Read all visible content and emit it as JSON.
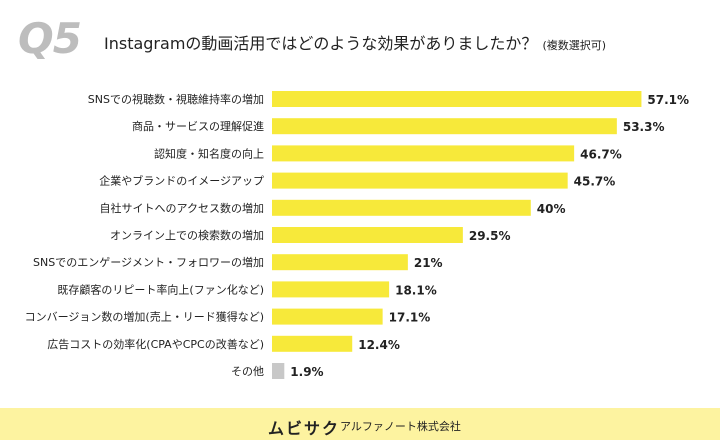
{
  "question_number": "Q5",
  "title": "Instagramの動画活用ではどのような効果がありましたか？",
  "title_note": "(複数選択可)",
  "footer": {
    "logo": "ムビサク",
    "company": "アルファノート株式会社"
  },
  "colors": {
    "bar": "#f7e93a",
    "bar_other": "#c8c8c8",
    "footer_bg": "#fdf3a0"
  },
  "chart_data": {
    "type": "bar",
    "orientation": "horizontal",
    "categories": [
      "SNSでの視聴数・視聴維持率の増加",
      "商品・サービスの理解促進",
      "認知度・知名度の向上",
      "企業やブランドのイメージアップ",
      "自社サイトへのアクセス数の増加",
      "オンライン上での検索数の増加",
      "SNSでのエンゲージメント・フォロワーの増加",
      "既存顧客のリピート率向上(ファン化など)",
      "コンバージョン数の増加(売上・リード獲得など)",
      "広告コストの効率化(CPAやCPCの改善など)",
      "その他"
    ],
    "values": [
      57.1,
      53.3,
      46.7,
      45.7,
      40,
      29.5,
      21,
      18.1,
      17.1,
      12.4,
      1.9
    ],
    "value_labels": [
      "57.1%",
      "53.3%",
      "46.7%",
      "45.7%",
      "40%",
      "29.5%",
      "21%",
      "18.1%",
      "17.1%",
      "12.4%",
      "1.9%"
    ],
    "xlim": [
      0,
      60
    ],
    "grid": false
  }
}
